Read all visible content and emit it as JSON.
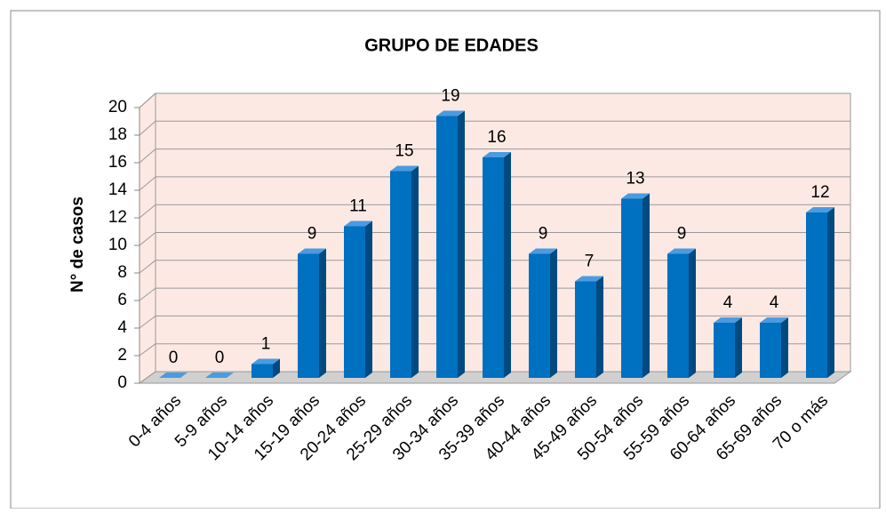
{
  "chart_data": {
    "type": "bar3d",
    "title": "GRUPO DE EDADES",
    "y_label": "N° de casos",
    "categories": [
      "0-4 años",
      "5-9 años",
      "10-14 años",
      "15-19 años",
      "20-24 años",
      "25-29 años",
      "30-34 años",
      "35-39 años",
      "40-44 años",
      "45-49 años",
      "50-54 años",
      "55-59 años",
      "60-64 años",
      "65-69 años",
      "70 o más"
    ],
    "values": [
      0,
      0,
      1,
      9,
      11,
      15,
      19,
      16,
      9,
      7,
      13,
      9,
      4,
      4,
      12
    ],
    "color": "#0070c0",
    "ylim": [
      0,
      20
    ],
    "yticks": [
      0,
      2,
      4,
      6,
      8,
      10,
      12,
      14,
      16,
      18,
      20
    ],
    "grid": true
  }
}
